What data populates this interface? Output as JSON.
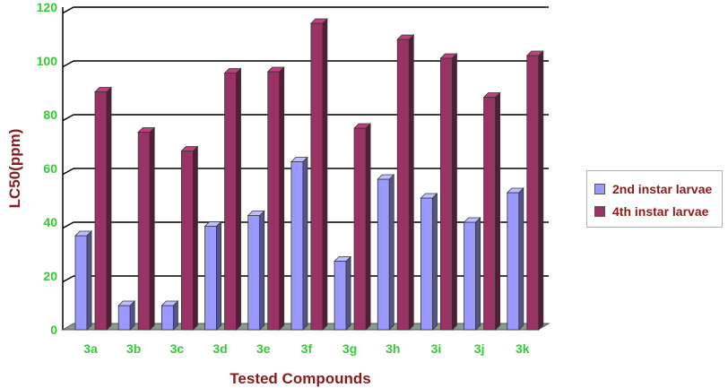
{
  "chart_data": {
    "type": "bar",
    "categories": [
      "3a",
      "3b",
      "3c",
      "3d",
      "3e",
      "3f",
      "3g",
      "3h",
      "3i",
      "3j",
      "3k"
    ],
    "series": [
      {
        "name": "2nd instar larvae",
        "values": [
          35,
          9,
          9,
          38.5,
          42.5,
          62.5,
          25.5,
          56,
          49,
          40,
          51
        ],
        "color": "#9999ff"
      },
      {
        "name": "4th instar larvae",
        "values": [
          88.5,
          73.5,
          66.5,
          95.5,
          96,
          114,
          75,
          108,
          101,
          86.5,
          102
        ],
        "color": "#993366"
      }
    ],
    "title": "",
    "xlabel": "Tested Compounds",
    "ylabel": "LC50(ppm)",
    "ylim": [
      0,
      120
    ],
    "yticks": [
      "0",
      "20",
      "40",
      "60",
      "80",
      "100",
      "120"
    ],
    "grid": true,
    "legend_position": "right",
    "colors": {
      "tick_labels": "#33cc33",
      "axis_titles": "#8b1a1a",
      "gridline": "#000000"
    }
  }
}
